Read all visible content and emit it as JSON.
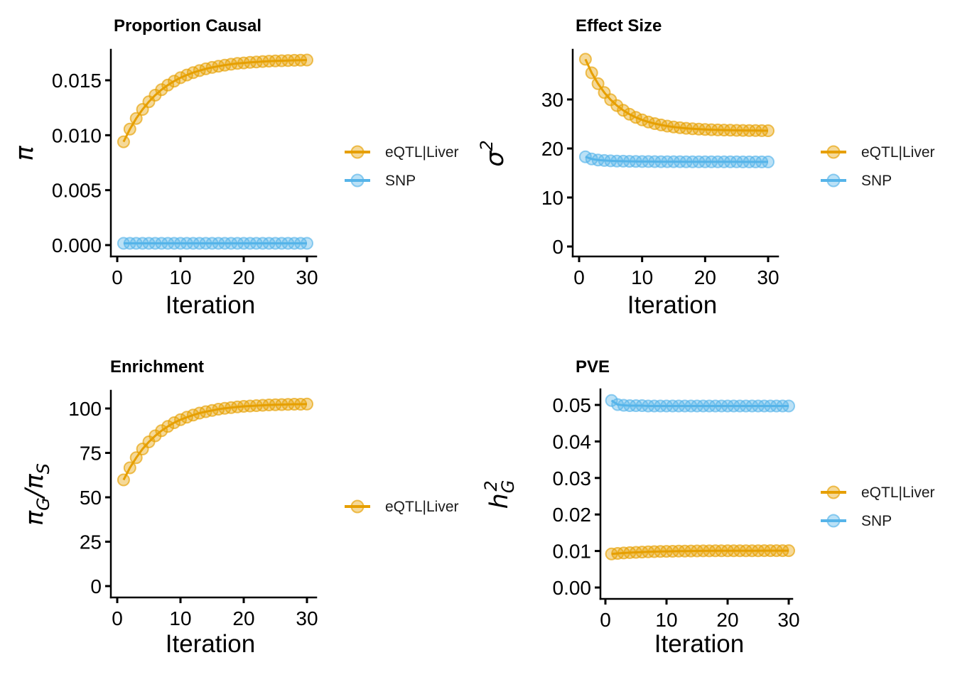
{
  "figure": {
    "background": "#ffffff",
    "axis_color": "#000000",
    "text_color": "#000000"
  },
  "palette": {
    "eqtl_liver": "#E69F00",
    "snp": "#56B4E9"
  },
  "chart_data": [
    {
      "id": "proportion-causal",
      "type": "line",
      "title": "Proportion Causal",
      "xlabel": "Iteration",
      "ylabel_text": "π",
      "ylabel_segments": [
        {
          "t": "π"
        }
      ],
      "grid": false,
      "legend_position": "right",
      "xlim": [
        0,
        30
      ],
      "ylim": [
        0,
        0.0178
      ],
      "xticks": [
        0,
        10,
        20,
        30
      ],
      "xtick_labels": [
        "0",
        "10",
        "20",
        "30"
      ],
      "yticks": [
        0,
        0.005,
        0.01,
        0.015
      ],
      "ytick_labels": [
        "0.000",
        "0.005",
        "0.010",
        "0.015"
      ],
      "x": [
        1,
        2,
        3,
        4,
        5,
        6,
        7,
        8,
        9,
        10,
        11,
        12,
        13,
        14,
        15,
        16,
        17,
        18,
        19,
        20,
        21,
        22,
        23,
        24,
        25,
        26,
        27,
        28,
        29,
        30
      ],
      "series": [
        {
          "name": "eQTL|Liver",
          "color": "#E69F00",
          "values": [
            0.0094,
            0.01055,
            0.01153,
            0.01235,
            0.01305,
            0.01364,
            0.01414,
            0.01456,
            0.01492,
            0.01523,
            0.01548,
            0.0157,
            0.01588,
            0.01604,
            0.01617,
            0.01628,
            0.01638,
            0.01646,
            0.01653,
            0.01658,
            0.01663,
            0.01667,
            0.01671,
            0.01674,
            0.01676,
            0.01678,
            0.0168,
            0.01682,
            0.01683,
            0.01684
          ]
        },
        {
          "name": "SNP",
          "color": "#56B4E9",
          "values": [
            0.00016,
            0.00016,
            0.00016,
            0.00016,
            0.00016,
            0.00016,
            0.00016,
            0.00016,
            0.00016,
            0.00016,
            0.00016,
            0.00016,
            0.00016,
            0.00016,
            0.00016,
            0.00016,
            0.00016,
            0.00016,
            0.00016,
            0.00016,
            0.00016,
            0.00016,
            0.00016,
            0.00016,
            0.00016,
            0.00016,
            0.00016,
            0.00016,
            0.00016,
            0.00016
          ]
        }
      ]
    },
    {
      "id": "effect-size",
      "type": "line",
      "title": "Effect Size",
      "xlabel": "Iteration",
      "ylabel_text": "σ²",
      "ylabel_segments": [
        {
          "t": "σ"
        },
        {
          "t": "2",
          "sup": true
        }
      ],
      "grid": false,
      "legend_position": "right",
      "xlim": [
        0,
        30
      ],
      "ylim": [
        0,
        40
      ],
      "xticks": [
        0,
        10,
        20,
        30
      ],
      "xtick_labels": [
        "0",
        "10",
        "20",
        "30"
      ],
      "yticks": [
        0,
        10,
        20,
        30
      ],
      "ytick_labels": [
        "0",
        "10",
        "20",
        "30"
      ],
      "x": [
        1,
        2,
        3,
        4,
        5,
        6,
        7,
        8,
        9,
        10,
        11,
        12,
        13,
        14,
        15,
        16,
        17,
        18,
        19,
        20,
        21,
        22,
        23,
        24,
        25,
        26,
        27,
        28,
        29,
        30
      ],
      "series": [
        {
          "name": "eQTL|Liver",
          "color": "#E69F00",
          "values": [
            38.2,
            35.44,
            33.22,
            31.41,
            29.94,
            28.75,
            27.78,
            26.99,
            26.35,
            25.83,
            25.41,
            25.07,
            24.79,
            24.57,
            24.39,
            24.24,
            24.12,
            24.02,
            23.94,
            23.88,
            23.83,
            23.78,
            23.75,
            23.72,
            23.7,
            23.68,
            23.66,
            23.65,
            23.64,
            23.63
          ]
        },
        {
          "name": "SNP",
          "color": "#56B4E9",
          "values": [
            18.3,
            17.85,
            17.65,
            17.55,
            17.48,
            17.44,
            17.4,
            17.38,
            17.36,
            17.34,
            17.33,
            17.32,
            17.31,
            17.31,
            17.3,
            17.3,
            17.29,
            17.29,
            17.28,
            17.28,
            17.28,
            17.27,
            17.27,
            17.27,
            17.27,
            17.26,
            17.26,
            17.26,
            17.26,
            17.26
          ]
        }
      ]
    },
    {
      "id": "enrichment",
      "type": "line",
      "title": "Enrichment",
      "xlabel": "Iteration",
      "ylabel_text": "π_G/π_S",
      "ylabel_segments": [
        {
          "t": "π"
        },
        {
          "t": "G",
          "sub": true
        },
        {
          "t": "/"
        },
        {
          "t": "π"
        },
        {
          "t": "S",
          "sub": true
        }
      ],
      "grid": false,
      "legend_position": "right",
      "xlim": [
        0,
        30
      ],
      "ylim": [
        0,
        110
      ],
      "xticks": [
        0,
        10,
        20,
        30
      ],
      "xtick_labels": [
        "0",
        "10",
        "20",
        "30"
      ],
      "yticks": [
        0,
        25,
        50,
        75,
        100
      ],
      "ytick_labels": [
        "0",
        "25",
        "50",
        "75",
        "100"
      ],
      "x": [
        1,
        2,
        3,
        4,
        5,
        6,
        7,
        8,
        9,
        10,
        11,
        12,
        13,
        14,
        15,
        16,
        17,
        18,
        19,
        20,
        21,
        22,
        23,
        24,
        25,
        26,
        27,
        28,
        29,
        30
      ],
      "series": [
        {
          "name": "eQTL|Liver",
          "color": "#E69F00",
          "values": [
            59.8,
            66.6,
            72.3,
            77.2,
            81.2,
            84.6,
            87.5,
            89.9,
            92,
            93.7,
            95.1,
            96.3,
            97.4,
            98.2,
            98.9,
            99.6,
            100.1,
            100.5,
            100.9,
            101.2,
            101.4,
            101.6,
            101.8,
            102,
            102.1,
            102.2,
            102.3,
            102.4,
            102.4,
            102.5
          ]
        }
      ]
    },
    {
      "id": "pve",
      "type": "line",
      "title": "PVE",
      "xlabel": "Iteration",
      "ylabel_text": "h²_G",
      "ylabel_segments": [
        {
          "t": "h"
        },
        {
          "t": "G",
          "sub": true
        },
        {
          "t": "2",
          "sup": true,
          "stack": true
        }
      ],
      "grid": false,
      "legend_position": "right",
      "xlim": [
        0,
        30
      ],
      "ylim": [
        0,
        0.054
      ],
      "xticks": [
        0,
        10,
        20,
        30
      ],
      "xtick_labels": [
        "0",
        "10",
        "20",
        "30"
      ],
      "yticks": [
        0,
        0.01,
        0.02,
        0.03,
        0.04,
        0.05
      ],
      "ytick_labels": [
        "0.00",
        "0.01",
        "0.02",
        "0.03",
        "0.04",
        "0.05"
      ],
      "x": [
        1,
        2,
        3,
        4,
        5,
        6,
        7,
        8,
        9,
        10,
        11,
        12,
        13,
        14,
        15,
        16,
        17,
        18,
        19,
        20,
        21,
        22,
        23,
        24,
        25,
        26,
        27,
        28,
        29,
        30
      ],
      "series": [
        {
          "name": "eQTL|Liver",
          "color": "#E69F00",
          "values": [
            0.0092,
            0.00934,
            0.00946,
            0.00955,
            0.00964,
            0.00971,
            0.00977,
            0.00982,
            0.00986,
            0.0099,
            0.00993,
            0.00996,
            0.00998,
            0.01,
            0.01001,
            0.01003,
            0.01004,
            0.01005,
            0.01006,
            0.01006,
            0.01007,
            0.01007,
            0.01008,
            0.01008,
            0.01008,
            0.01009,
            0.01009,
            0.01009,
            0.01009,
            0.01009
          ]
        },
        {
          "name": "SNP",
          "color": "#56B4E9",
          "values": [
            0.0512,
            0.0501,
            0.0499,
            0.0498,
            0.0498,
            0.0498,
            0.0497,
            0.0497,
            0.0497,
            0.0497,
            0.0497,
            0.0497,
            0.0497,
            0.0497,
            0.0497,
            0.0497,
            0.0497,
            0.0497,
            0.0497,
            0.0497,
            0.0497,
            0.0497,
            0.0497,
            0.0497,
            0.0497,
            0.0497,
            0.0497,
            0.0497,
            0.0497,
            0.0497
          ]
        }
      ]
    }
  ]
}
